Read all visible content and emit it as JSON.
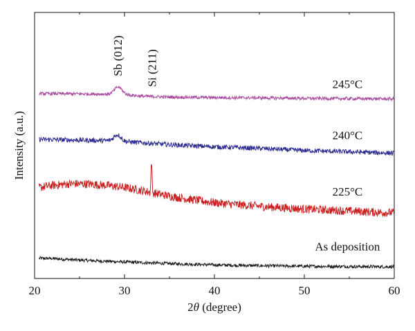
{
  "chart_data": {
    "type": "line",
    "xlabel_prefix": "2",
    "xlabel_symbol": "θ",
    "xlabel_suffix": " (degree)",
    "ylabel": "Intensity (a.u.)",
    "xlim": [
      20,
      60
    ],
    "ylim": [
      0,
      100
    ],
    "x_ticks": [
      20,
      30,
      40,
      50,
      60
    ],
    "grid": false,
    "legend": "none",
    "series": [
      {
        "name": "As deposition",
        "color": "#1a1a1a",
        "noise": 0.6,
        "points": [
          [
            20.5,
            7.6
          ],
          [
            22,
            7.5
          ],
          [
            25,
            6.9
          ],
          [
            30,
            6.2
          ],
          [
            35,
            5.6
          ],
          [
            40,
            5.1
          ],
          [
            45,
            4.8
          ],
          [
            50,
            4.6
          ],
          [
            55,
            4.5
          ],
          [
            60,
            4.4
          ]
        ]
      },
      {
        "name": "225°C",
        "color": "#cc1f1f",
        "noise": 1.6,
        "peak": {
          "x": 33.0,
          "height": 12,
          "width": 0.08
        },
        "points": [
          [
            20.5,
            34.2
          ],
          [
            22,
            35.0
          ],
          [
            24,
            35.6
          ],
          [
            26,
            35.5
          ],
          [
            28,
            35.0
          ],
          [
            30,
            34.2
          ],
          [
            32,
            33.0
          ],
          [
            34,
            31.6
          ],
          [
            36,
            30.4
          ],
          [
            38,
            29.4
          ],
          [
            40,
            28.5
          ],
          [
            42,
            27.9
          ],
          [
            44,
            27.4
          ],
          [
            46,
            26.9
          ],
          [
            48,
            26.5
          ],
          [
            50,
            26.1
          ],
          [
            52,
            25.8
          ],
          [
            54,
            25.5
          ],
          [
            56,
            25.2
          ],
          [
            58,
            24.9
          ],
          [
            60,
            24.7
          ]
        ]
      },
      {
        "name": "240°C",
        "color": "#2b2a8e",
        "noise": 0.9,
        "bump": {
          "x": 29.2,
          "height": 2.4,
          "width": 0.55
        },
        "points": [
          [
            20.5,
            52.3
          ],
          [
            25,
            52.0
          ],
          [
            28,
            51.8
          ],
          [
            30,
            51.5
          ],
          [
            32,
            51.0
          ],
          [
            35,
            50.3
          ],
          [
            40,
            49.5
          ],
          [
            45,
            48.9
          ],
          [
            50,
            48.1
          ],
          [
            55,
            47.6
          ],
          [
            60,
            47.1
          ]
        ]
      },
      {
        "name": "245°C",
        "color": "#a74a9e",
        "noise": 0.6,
        "bump": {
          "x": 29.3,
          "height": 2.8,
          "width": 0.6
        },
        "points": [
          [
            20.5,
            69.5
          ],
          [
            25,
            69.4
          ],
          [
            28,
            69.3
          ],
          [
            30,
            69.1
          ],
          [
            32,
            68.5
          ],
          [
            35,
            68.2
          ],
          [
            40,
            68.0
          ],
          [
            45,
            67.9
          ],
          [
            50,
            67.7
          ],
          [
            55,
            67.6
          ],
          [
            60,
            67.5
          ]
        ]
      }
    ],
    "labels": [
      {
        "text": "245°C",
        "x": 54.8,
        "y": 71.6
      },
      {
        "text": "240°C",
        "x": 54.8,
        "y": 52.3
      },
      {
        "text": "225°C",
        "x": 54.8,
        "y": 31.2
      },
      {
        "text": "As deposition",
        "x": 54.8,
        "y": 10.5
      }
    ],
    "annotations": [
      {
        "text": "Sb (012)",
        "x": 29.7,
        "y": 76.0
      },
      {
        "text": "Si (211)",
        "x": 33.5,
        "y": 72.0
      }
    ]
  }
}
